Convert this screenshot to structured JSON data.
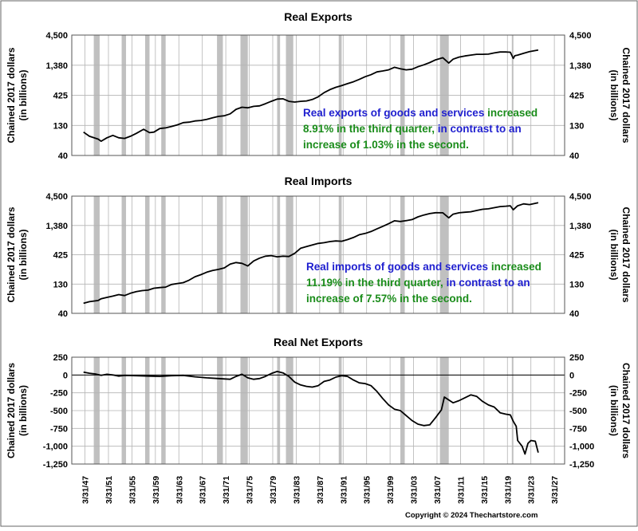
{
  "copyright": "Copyright © 2024 Thechartstore.com",
  "colors": {
    "recession": "#c0c0c0",
    "line": "#000000",
    "grid": "#b4b4b4",
    "blue_text": "#1f1fcf",
    "green_text": "#1a8c1a"
  },
  "recessions": [
    [
      1948.75,
      1949.75
    ],
    [
      1953.5,
      1954.25
    ],
    [
      1957.5,
      1958.25
    ],
    [
      1960.25,
      1961.0
    ],
    [
      1969.75,
      1970.75
    ],
    [
      1973.75,
      1975.0
    ],
    [
      1980.0,
      1980.5
    ],
    [
      1981.5,
      1982.75
    ],
    [
      1990.5,
      1991.0
    ],
    [
      2001.0,
      2001.75
    ],
    [
      2007.75,
      2009.25
    ],
    [
      2020.0,
      2020.25
    ]
  ],
  "x_ticks": [
    "3/31/47",
    "3/31/51",
    "3/31/55",
    "3/31/59",
    "3/31/63",
    "3/31/67",
    "3/31/71",
    "3/31/75",
    "3/31/79",
    "3/31/83",
    "3/31/87",
    "3/31/91",
    "3/31/95",
    "3/31/99",
    "3/31/03",
    "3/31/07",
    "3/31/11",
    "3/31/15",
    "3/31/19",
    "3/31/23",
    "3/31/27"
  ],
  "chart_data": [
    {
      "type": "line",
      "title": "Real Exports",
      "ylabel": [
        "Chained 2017 dollars",
        "(in billions)"
      ],
      "yscale": "log",
      "ylim": [
        40,
        4500
      ],
      "y_ticks": [
        4500,
        1380,
        425,
        130,
        40
      ],
      "y_tick_labels": [
        "4,500",
        "1,380",
        "425",
        "130",
        "40"
      ],
      "grid": true,
      "annotation": [
        {
          "text": "Real exports of goods and services ",
          "color": "blue"
        },
        {
          "text": "increased",
          "color": "green"
        },
        {
          "text": "8.91% in the third quarter, ",
          "color": "green",
          "newline": true
        },
        {
          "text": "in contrast to an",
          "color": "blue"
        },
        {
          "text": "increase of 1.03% in the second.",
          "color": "green",
          "newline": true
        }
      ],
      "series": [
        {
          "x": [
            1947.0,
            1948.0,
            1949.5,
            1950.0,
            1951.0,
            1952.0,
            1953.0,
            1954.0,
            1955.0,
            1956.0,
            1957.25,
            1958.25,
            1959.0,
            1960.0,
            1961.0,
            1962.0,
            1963.0,
            1964.0,
            1965.0,
            1966.0,
            1967.0,
            1968.0,
            1969.0,
            1970.0,
            1971.0,
            1972.0,
            1973.0,
            1974.0,
            1975.0,
            1976.0,
            1977.0,
            1978.0,
            1979.0,
            1980.0,
            1981.0,
            1982.0,
            1983.0,
            1984.0,
            1985.0,
            1986.0,
            1987.0,
            1988.0,
            1989.0,
            1990.0,
            1991.0,
            1992.0,
            1993.0,
            1994.0,
            1995.0,
            1996.0,
            1997.0,
            1998.0,
            1999.0,
            2000.0,
            2001.0,
            2002.0,
            2003.0,
            2004.0,
            2005.0,
            2006.0,
            2007.0,
            2008.25,
            2009.25,
            2010.0,
            2011.0,
            2012.0,
            2013.0,
            2014.0,
            2015.0,
            2016.0,
            2017.0,
            2018.0,
            2019.0,
            2019.75,
            2020.25,
            2020.5,
            2021.0,
            2022.0,
            2023.0,
            2024.5
          ],
          "y": [
            100,
            85,
            76,
            70,
            80,
            88,
            80,
            78,
            85,
            95,
            112,
            98,
            100,
            115,
            118,
            125,
            133,
            145,
            148,
            155,
            158,
            165,
            175,
            185,
            190,
            205,
            245,
            265,
            260,
            275,
            280,
            305,
            335,
            365,
            370,
            335,
            325,
            335,
            340,
            360,
            400,
            470,
            530,
            580,
            620,
            670,
            720,
            790,
            880,
            950,
            1060,
            1100,
            1150,
            1270,
            1200,
            1150,
            1180,
            1300,
            1400,
            1530,
            1700,
            1850,
            1500,
            1750,
            1900,
            1980,
            2050,
            2120,
            2120,
            2130,
            2230,
            2320,
            2320,
            2300,
            1800,
            2000,
            2050,
            2200,
            2350,
            2500
          ]
        }
      ]
    },
    {
      "type": "line",
      "title": "Real Imports",
      "ylabel": [
        "Chained 2017 dollars",
        "(in billions)"
      ],
      "yscale": "log",
      "ylim": [
        40,
        4500
      ],
      "y_ticks": [
        4500,
        1380,
        425,
        130,
        40
      ],
      "y_tick_labels": [
        "4,500",
        "1,380",
        "425",
        "130",
        "40"
      ],
      "grid": true,
      "annotation": [
        {
          "text": "Real imports of goods and services ",
          "color": "blue"
        },
        {
          "text": "increased",
          "color": "green"
        },
        {
          "text": "11.19% in the third quarter, ",
          "color": "green",
          "newline": true
        },
        {
          "text": "in contrast to an",
          "color": "blue"
        },
        {
          "text": "increase of 7.57% in the second.",
          "color": "green",
          "newline": true
        }
      ],
      "series": [
        {
          "x": [
            1947.0,
            1948.0,
            1949.5,
            1950.0,
            1951.0,
            1952.0,
            1953.0,
            1954.0,
            1955.0,
            1956.0,
            1957.0,
            1958.0,
            1959.0,
            1960.0,
            1961.0,
            1962.0,
            1963.0,
            1964.0,
            1965.0,
            1966.0,
            1967.0,
            1968.0,
            1969.0,
            1970.0,
            1971.0,
            1972.0,
            1973.0,
            1974.0,
            1975.0,
            1976.0,
            1977.0,
            1978.0,
            1979.0,
            1980.0,
            1981.0,
            1982.0,
            1983.0,
            1984.0,
            1985.0,
            1986.0,
            1987.0,
            1988.0,
            1989.0,
            1990.0,
            1991.0,
            1992.0,
            1993.0,
            1994.0,
            1995.0,
            1996.0,
            1997.0,
            1998.0,
            1999.0,
            2000.0,
            2001.0,
            2002.0,
            2003.0,
            2004.0,
            2005.0,
            2006.0,
            2007.0,
            2008.25,
            2009.25,
            2010.0,
            2011.0,
            2012.0,
            2013.0,
            2014.0,
            2015.0,
            2016.0,
            2017.0,
            2018.0,
            2019.0,
            2019.75,
            2020.25,
            2020.75,
            2021.0,
            2022.0,
            2023.0,
            2024.5
          ],
          "y": [
            60,
            64,
            67,
            72,
            76,
            80,
            85,
            82,
            90,
            96,
            100,
            102,
            110,
            113,
            115,
            128,
            133,
            138,
            152,
            175,
            190,
            210,
            225,
            235,
            250,
            290,
            310,
            300,
            270,
            330,
            370,
            400,
            410,
            390,
            400,
            395,
            450,
            550,
            590,
            630,
            670,
            690,
            720,
            740,
            730,
            780,
            850,
            950,
            1000,
            1080,
            1200,
            1330,
            1480,
            1670,
            1620,
            1680,
            1750,
            1950,
            2100,
            2230,
            2310,
            2300,
            1880,
            2180,
            2300,
            2350,
            2400,
            2520,
            2650,
            2700,
            2820,
            2950,
            3000,
            3050,
            2600,
            2900,
            3050,
            3300,
            3200,
            3450
          ]
        }
      ]
    },
    {
      "type": "line",
      "title": "Real Net Exports",
      "ylabel": [
        "Chained 2017 dollars",
        "(in billions)"
      ],
      "yscale": "linear",
      "ylim": [
        -1250,
        250
      ],
      "y_ticks": [
        250,
        0,
        -250,
        -500,
        -750,
        -1000,
        -1250
      ],
      "y_tick_labels": [
        "250",
        "0",
        "-250",
        "-500",
        "-750",
        "-1,000",
        "-1,250"
      ],
      "grid": true,
      "zero_line": true,
      "series": [
        {
          "x": [
            1947.0,
            1948.0,
            1949.0,
            1950.0,
            1951.0,
            1952.0,
            1953.0,
            1954.0,
            1956.0,
            1958.0,
            1960.0,
            1962.0,
            1964.0,
            1966.0,
            1968.0,
            1970.0,
            1972.0,
            1973.0,
            1974.0,
            1975.0,
            1976.0,
            1977.0,
            1978.0,
            1979.0,
            1980.0,
            1981.0,
            1982.0,
            1983.0,
            1984.0,
            1985.0,
            1986.0,
            1987.0,
            1988.0,
            1989.0,
            1990.0,
            1991.0,
            1992.0,
            1993.0,
            1994.0,
            1995.0,
            1996.0,
            1997.0,
            1998.0,
            1999.0,
            2000.0,
            2001.0,
            2002.0,
            2003.0,
            2004.0,
            2005.0,
            2006.0,
            2007.0,
            2008.0,
            2008.5,
            2009.25,
            2010.0,
            2011.0,
            2012.0,
            2013.0,
            2014.0,
            2015.0,
            2016.0,
            2017.0,
            2018.0,
            2019.0,
            2019.75,
            2020.25,
            2020.75,
            2021.0,
            2021.75,
            2022.25,
            2022.75,
            2023.25,
            2024.0,
            2024.5
          ],
          "y": [
            40,
            25,
            15,
            -5,
            10,
            0,
            -15,
            -5,
            -10,
            -15,
            -20,
            -10,
            -5,
            -25,
            -40,
            -50,
            -60,
            -20,
            10,
            -40,
            -60,
            -50,
            -20,
            20,
            50,
            30,
            -20,
            -100,
            -140,
            -160,
            -170,
            -150,
            -90,
            -70,
            -30,
            -10,
            -20,
            -70,
            -110,
            -120,
            -150,
            -230,
            -330,
            -420,
            -480,
            -500,
            -570,
            -640,
            -690,
            -710,
            -700,
            -600,
            -490,
            -310,
            -350,
            -390,
            -360,
            -320,
            -280,
            -300,
            -370,
            -420,
            -450,
            -530,
            -550,
            -560,
            -650,
            -720,
            -920,
            -1000,
            -1110,
            -960,
            -920,
            -930,
            -1090
          ]
        }
      ]
    }
  ]
}
